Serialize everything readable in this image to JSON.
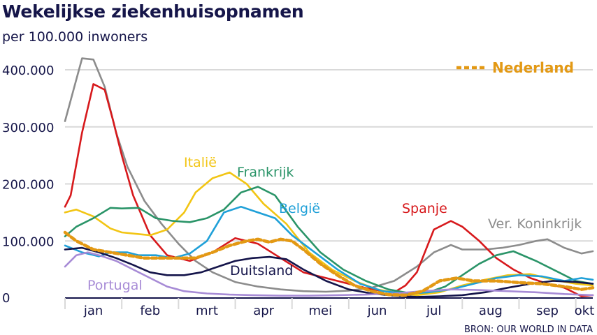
{
  "chart_data": {
    "type": "line",
    "title": "Wekelijkse ziekenhuisopnamen",
    "subtitle": "per 100.000 inwoners",
    "source": "BRON: OUR WORLD IN DATA",
    "xlabel": "",
    "ylabel": "",
    "ylim": [
      0,
      400000
    ],
    "yticks": [
      {
        "value": 0,
        "label": "0"
      },
      {
        "value": 100000,
        "label": "100.000"
      },
      {
        "value": 200000,
        "label": "200.000"
      },
      {
        "value": 300000,
        "label": "300.000"
      },
      {
        "value": 400000,
        "label": "400.000"
      }
    ],
    "xlim": [
      0,
      9.3
    ],
    "months": [
      "jan",
      "feb",
      "mrt",
      "apr",
      "mei",
      "jun",
      "jul",
      "aug",
      "sep",
      "okt"
    ],
    "grid": true,
    "legend": "top-right",
    "legend_label": "Nederland",
    "series": [
      {
        "name": "Ver. Koninkrijk",
        "color": "#8c8c8c",
        "dashed": false,
        "x": [
          0,
          0.3,
          0.5,
          0.7,
          0.9,
          1.1,
          1.4,
          1.7,
          2.0,
          2.3,
          2.6,
          3.0,
          3.4,
          3.8,
          4.2,
          4.6,
          5.0,
          5.4,
          5.8,
          6.2,
          6.5,
          6.8,
          7.0,
          7.4,
          7.7,
          8.0,
          8.3,
          8.5,
          8.8,
          9.1,
          9.3
        ],
        "y": [
          310000,
          420000,
          418000,
          370000,
          290000,
          230000,
          170000,
          130000,
          95000,
          65000,
          45000,
          28000,
          20000,
          15000,
          12000,
          11000,
          13000,
          18000,
          30000,
          55000,
          80000,
          93000,
          85000,
          85000,
          88000,
          93000,
          100000,
          103000,
          88000,
          78000,
          82000
        ]
      },
      {
        "name": "Spanje",
        "color": "#d7191c",
        "dashed": false,
        "x": [
          0,
          0.1,
          0.3,
          0.5,
          0.7,
          0.85,
          1.0,
          1.2,
          1.5,
          1.8,
          2.2,
          2.6,
          3.0,
          3.4,
          3.8,
          4.2,
          4.6,
          5.0,
          5.4,
          5.8,
          6.0,
          6.2,
          6.5,
          6.8,
          7.0,
          7.3,
          7.6,
          7.9,
          8.2,
          8.5,
          8.8,
          9.1,
          9.3
        ],
        "y": [
          160000,
          180000,
          290000,
          375000,
          365000,
          310000,
          250000,
          180000,
          110000,
          75000,
          65000,
          80000,
          105000,
          95000,
          70000,
          45000,
          35000,
          25000,
          15000,
          10000,
          22000,
          45000,
          120000,
          135000,
          125000,
          100000,
          70000,
          50000,
          35000,
          25000,
          18000,
          3000,
          5000
        ]
      },
      {
        "name": "Italië",
        "color": "#f2c514",
        "dashed": false,
        "x": [
          0,
          0.2,
          0.5,
          0.8,
          1.0,
          1.3,
          1.5,
          1.8,
          2.1,
          2.3,
          2.6,
          2.9,
          3.2,
          3.5,
          3.9,
          4.3,
          4.7,
          5.1,
          5.5,
          5.9,
          6.2,
          6.6,
          7.0,
          7.4,
          7.8,
          8.2,
          8.6,
          9.0,
          9.3
        ],
        "y": [
          150000,
          155000,
          143000,
          122000,
          115000,
          112000,
          110000,
          120000,
          150000,
          185000,
          210000,
          220000,
          200000,
          165000,
          130000,
          80000,
          50000,
          30000,
          15000,
          8000,
          5000,
          10000,
          22000,
          32000,
          40000,
          42000,
          32000,
          25000,
          22000
        ]
      },
      {
        "name": "Frankrijk",
        "color": "#2a9468",
        "dashed": false,
        "x": [
          0,
          0.2,
          0.5,
          0.8,
          1.0,
          1.3,
          1.6,
          1.9,
          2.2,
          2.5,
          2.8,
          3.1,
          3.4,
          3.7,
          4.1,
          4.5,
          4.9,
          5.3,
          5.7,
          6.1,
          6.4,
          6.7,
          7.0,
          7.3,
          7.6,
          7.9,
          8.3,
          8.7,
          9.0,
          9.3
        ],
        "y": [
          108000,
          125000,
          140000,
          158000,
          157000,
          158000,
          140000,
          135000,
          133000,
          140000,
          155000,
          185000,
          195000,
          180000,
          125000,
          80000,
          50000,
          30000,
          15000,
          8000,
          10000,
          20000,
          40000,
          60000,
          75000,
          82000,
          65000,
          45000,
          30000,
          25000
        ]
      },
      {
        "name": "België",
        "color": "#1fa0d8",
        "dashed": false,
        "x": [
          0,
          0.3,
          0.6,
          0.8,
          1.1,
          1.3,
          1.6,
          1.9,
          2.2,
          2.5,
          2.8,
          3.1,
          3.4,
          3.7,
          4.0,
          4.4,
          4.8,
          5.2,
          5.6,
          6.0,
          6.4,
          6.8,
          7.2,
          7.6,
          8.0,
          8.4,
          8.8,
          9.1,
          9.3
        ],
        "y": [
          92000,
          80000,
          73000,
          80000,
          80000,
          75000,
          75000,
          70000,
          78000,
          100000,
          150000,
          160000,
          150000,
          140000,
          110000,
          80000,
          50000,
          25000,
          12000,
          8000,
          10000,
          15000,
          25000,
          35000,
          40000,
          38000,
          30000,
          35000,
          32000
        ]
      },
      {
        "name": "Duitsland",
        "color": "#14144a",
        "dashed": false,
        "x": [
          0,
          0.3,
          0.6,
          0.9,
          1.2,
          1.5,
          1.8,
          2.1,
          2.4,
          2.7,
          3.0,
          3.3,
          3.6,
          3.9,
          4.2,
          4.6,
          5.0,
          5.4,
          5.8,
          6.2,
          6.6,
          7.0,
          7.4,
          7.8,
          8.2,
          8.6,
          9.0,
          9.3
        ],
        "y": [
          85000,
          88000,
          80000,
          70000,
          58000,
          45000,
          40000,
          40000,
          45000,
          55000,
          65000,
          70000,
          72000,
          68000,
          50000,
          30000,
          15000,
          8000,
          4000,
          2000,
          3000,
          5000,
          10000,
          18000,
          25000,
          30000,
          28000,
          25000
        ]
      },
      {
        "name": "Portugal",
        "color": "#a78bd6",
        "dashed": false,
        "x": [
          0,
          0.2,
          0.4,
          0.6,
          0.9,
          1.2,
          1.5,
          1.8,
          2.1,
          2.5,
          2.9,
          3.3,
          3.8,
          4.3,
          4.8,
          5.3,
          5.8,
          6.3,
          6.8,
          7.3,
          7.8,
          8.3,
          8.8,
          9.3
        ],
        "y": [
          55000,
          75000,
          80000,
          75000,
          65000,
          50000,
          35000,
          20000,
          12000,
          8000,
          6000,
          5000,
          4000,
          4000,
          5000,
          6000,
          8000,
          12000,
          15000,
          14000,
          12000,
          10000,
          7000,
          5000
        ]
      },
      {
        "name": "Nederland",
        "color": "#e39914",
        "dashed": true,
        "x": [
          0,
          0.2,
          0.5,
          0.8,
          1.1,
          1.4,
          1.7,
          2.0,
          2.3,
          2.6,
          2.9,
          3.2,
          3.4,
          3.6,
          3.8,
          4.0,
          4.2,
          4.5,
          4.8,
          5.1,
          5.4,
          5.7,
          6.0,
          6.3,
          6.6,
          6.9,
          7.2,
          7.6,
          8.0,
          8.4,
          8.8,
          9.1,
          9.3
        ],
        "y": [
          115000,
          100000,
          85000,
          80000,
          75000,
          70000,
          70000,
          70000,
          70000,
          80000,
          92000,
          100000,
          103000,
          98000,
          103000,
          100000,
          85000,
          60000,
          40000,
          22000,
          12000,
          6000,
          5000,
          12000,
          30000,
          35000,
          30000,
          30000,
          27000,
          25000,
          20000,
          15000,
          18000
        ]
      }
    ],
    "labels": [
      {
        "series": "Ver. Koninkrijk",
        "text": "Ver. Koninkrijk"
      },
      {
        "series": "Spanje",
        "text": "Spanje"
      },
      {
        "series": "Italië",
        "text": "Italië"
      },
      {
        "series": "Frankrijk",
        "text": "Frankrijk"
      },
      {
        "series": "België",
        "text": "België"
      },
      {
        "series": "Duitsland",
        "text": "Duitsland"
      },
      {
        "series": "Portugal",
        "text": "Portugal"
      }
    ]
  }
}
